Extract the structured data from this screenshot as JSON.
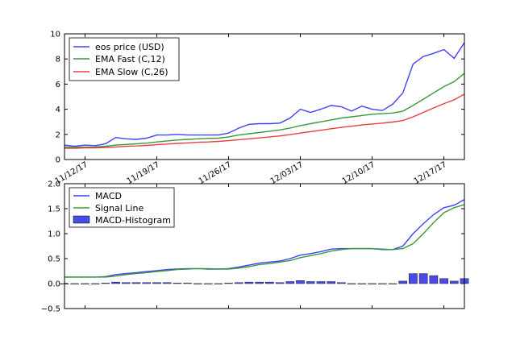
{
  "chart_data": [
    {
      "type": "line",
      "x_dates": [
        "11/10/17",
        "11/11/17",
        "11/12/17",
        "11/13/17",
        "11/14/17",
        "11/15/17",
        "11/16/17",
        "11/17/17",
        "11/18/17",
        "11/19/17",
        "11/20/17",
        "11/21/17",
        "11/22/17",
        "11/23/17",
        "11/24/17",
        "11/25/17",
        "11/26/17",
        "11/27/17",
        "11/28/17",
        "11/29/17",
        "11/30/17",
        "12/01/17",
        "12/02/17",
        "12/03/17",
        "12/04/17",
        "12/05/17",
        "12/06/17",
        "12/07/17",
        "12/08/17",
        "12/09/17",
        "12/10/17",
        "12/11/17",
        "12/12/17",
        "12/13/17",
        "12/14/17",
        "12/15/17",
        "12/16/17",
        "12/17/17",
        "12/18/17",
        "12/19/17"
      ],
      "xtick_labels": [
        "11/12/17",
        "11/19/17",
        "11/26/17",
        "12/03/17",
        "12/10/17",
        "12/17/17"
      ],
      "series": [
        {
          "name": "eos price (USD)",
          "color": "#4040ff",
          "values": [
            1.15,
            1.05,
            1.15,
            1.1,
            1.25,
            1.75,
            1.65,
            1.6,
            1.7,
            1.95,
            1.95,
            2.0,
            1.95,
            1.95,
            1.95,
            1.95,
            2.1,
            2.5,
            2.8,
            2.85,
            2.85,
            2.9,
            3.3,
            4.0,
            3.75,
            4.0,
            4.3,
            4.2,
            3.85,
            4.25,
            4.0,
            3.9,
            4.4,
            5.3,
            7.6,
            8.2,
            8.45,
            8.75,
            8.05,
            9.3
          ]
        },
        {
          "name": "EMA Fast (C,12)",
          "color": "#3a9a3a",
          "values": [
            1.0,
            0.98,
            0.99,
            1.0,
            1.05,
            1.15,
            1.2,
            1.25,
            1.3,
            1.4,
            1.48,
            1.55,
            1.6,
            1.65,
            1.68,
            1.7,
            1.8,
            1.95,
            2.05,
            2.15,
            2.25,
            2.35,
            2.5,
            2.7,
            2.85,
            3.0,
            3.15,
            3.3,
            3.4,
            3.5,
            3.6,
            3.65,
            3.7,
            3.85,
            4.3,
            4.8,
            5.3,
            5.8,
            6.2,
            6.85
          ]
        },
        {
          "name": "EMA Slow (C,26)",
          "color": "#e84040",
          "values": [
            0.9,
            0.9,
            0.92,
            0.93,
            0.96,
            1.0,
            1.05,
            1.08,
            1.12,
            1.18,
            1.23,
            1.28,
            1.32,
            1.37,
            1.4,
            1.44,
            1.5,
            1.58,
            1.65,
            1.72,
            1.8,
            1.88,
            1.98,
            2.1,
            2.22,
            2.33,
            2.45,
            2.56,
            2.65,
            2.75,
            2.83,
            2.9,
            2.98,
            3.1,
            3.4,
            3.75,
            4.1,
            4.45,
            4.75,
            5.2
          ]
        }
      ],
      "ylim": [
        0,
        10
      ],
      "yticks": [
        0,
        2,
        4,
        6,
        8,
        10
      ],
      "legend": "upper-left",
      "grid": false
    },
    {
      "type": "line",
      "series": [
        {
          "name": "MACD",
          "color": "#4040ff",
          "values": [
            0.13,
            0.13,
            0.13,
            0.13,
            0.14,
            0.18,
            0.2,
            0.22,
            0.24,
            0.26,
            0.28,
            0.29,
            0.3,
            0.3,
            0.29,
            0.29,
            0.3,
            0.33,
            0.37,
            0.41,
            0.43,
            0.45,
            0.5,
            0.57,
            0.6,
            0.64,
            0.69,
            0.7,
            0.7,
            0.7,
            0.7,
            0.68,
            0.68,
            0.75,
            1.0,
            1.2,
            1.38,
            1.52,
            1.57,
            1.68
          ]
        },
        {
          "name": "Signal Line",
          "color": "#3a9a3a",
          "values": [
            0.13,
            0.13,
            0.13,
            0.13,
            0.13,
            0.15,
            0.18,
            0.2,
            0.22,
            0.24,
            0.26,
            0.28,
            0.29,
            0.3,
            0.3,
            0.29,
            0.29,
            0.31,
            0.34,
            0.38,
            0.4,
            0.43,
            0.46,
            0.52,
            0.56,
            0.6,
            0.65,
            0.68,
            0.7,
            0.7,
            0.7,
            0.69,
            0.68,
            0.7,
            0.8,
            1.0,
            1.22,
            1.42,
            1.52,
            1.58
          ]
        }
      ],
      "histogram": {
        "name": "MACD-Histogram",
        "color": "#4a4ae8",
        "values": [
          0.0,
          0.0,
          0.0,
          0.0,
          0.01,
          0.03,
          0.02,
          0.02,
          0.02,
          0.02,
          0.02,
          0.01,
          0.01,
          0.0,
          -0.01,
          0.0,
          0.01,
          0.02,
          0.03,
          0.03,
          0.03,
          0.02,
          0.04,
          0.06,
          0.04,
          0.04,
          0.04,
          0.02,
          0.0,
          0.0,
          0.0,
          -0.01,
          0.0,
          0.05,
          0.2,
          0.2,
          0.16,
          0.1,
          0.05,
          0.1
        ]
      },
      "ylim": [
        -0.5,
        2.0
      ],
      "yticks": [
        "−0.5",
        "0.0",
        "0.5",
        "1.0",
        "1.5",
        "2.0"
      ],
      "legend": "upper-left",
      "grid": false
    }
  ]
}
